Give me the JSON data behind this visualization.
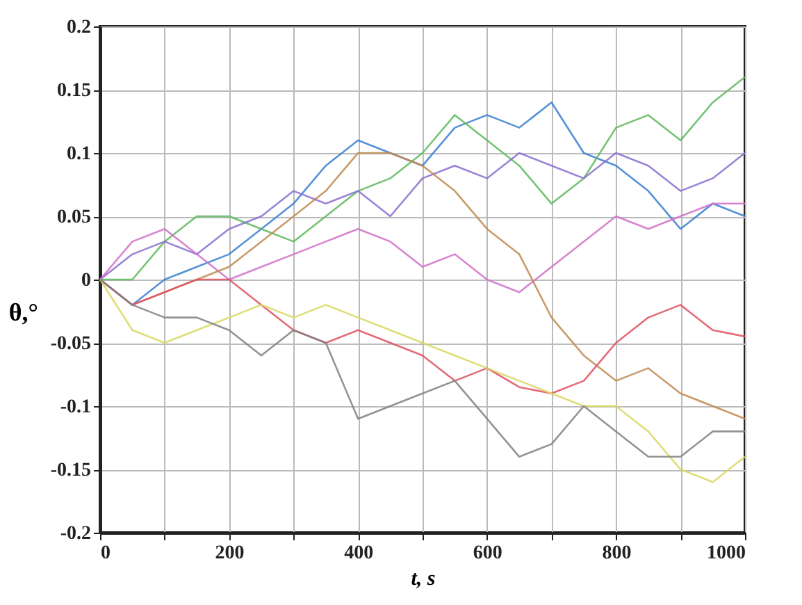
{
  "chart_data": {
    "type": "line",
    "xlabel": "t, s",
    "ylabel": "θ,°",
    "x": [
      0,
      50,
      100,
      150,
      200,
      250,
      300,
      350,
      400,
      450,
      500,
      550,
      600,
      650,
      700,
      750,
      800,
      850,
      900,
      950,
      1000
    ],
    "series": [
      {
        "color": "#3a7fd0",
        "values": [
          0,
          -0.02,
          0.0,
          0.01,
          0.02,
          0.04,
          0.06,
          0.09,
          0.11,
          0.1,
          0.09,
          0.12,
          0.13,
          0.12,
          0.14,
          0.1,
          0.09,
          0.07,
          0.04,
          0.06,
          0.05
        ]
      },
      {
        "color": "#5cb85c",
        "values": [
          0,
          0.0,
          0.03,
          0.05,
          0.05,
          0.04,
          0.03,
          0.05,
          0.07,
          0.08,
          0.1,
          0.13,
          0.11,
          0.09,
          0.06,
          0.08,
          0.12,
          0.13,
          0.11,
          0.14,
          0.16
        ]
      },
      {
        "color": "#8a6fd0",
        "values": [
          0,
          0.02,
          0.03,
          0.02,
          0.04,
          0.05,
          0.07,
          0.06,
          0.07,
          0.05,
          0.08,
          0.09,
          0.08,
          0.1,
          0.09,
          0.08,
          0.1,
          0.09,
          0.07,
          0.08,
          0.1
        ]
      },
      {
        "color": "#d070c8",
        "values": [
          0,
          0.03,
          0.04,
          0.02,
          0.0,
          0.01,
          0.02,
          0.03,
          0.04,
          0.03,
          0.01,
          0.02,
          0.0,
          -0.01,
          0.01,
          0.03,
          0.05,
          0.04,
          0.05,
          0.06,
          0.06
        ]
      },
      {
        "color": "#c08a50",
        "values": [
          0,
          -0.02,
          -0.01,
          0.0,
          0.01,
          0.03,
          0.05,
          0.07,
          0.1,
          0.1,
          0.09,
          0.07,
          0.04,
          0.02,
          -0.03,
          -0.06,
          -0.08,
          -0.07,
          -0.09,
          -0.1,
          -0.11
        ]
      },
      {
        "color": "#e05060",
        "values": [
          0,
          -0.02,
          -0.01,
          0.0,
          0.0,
          -0.02,
          -0.04,
          -0.05,
          -0.04,
          -0.05,
          -0.06,
          -0.08,
          -0.07,
          -0.085,
          -0.09,
          -0.08,
          -0.05,
          -0.03,
          -0.02,
          -0.04,
          -0.045
        ]
      },
      {
        "color": "#d8d860",
        "values": [
          0,
          -0.04,
          -0.05,
          -0.04,
          -0.03,
          -0.02,
          -0.03,
          -0.02,
          -0.03,
          -0.04,
          -0.05,
          -0.06,
          -0.07,
          -0.08,
          -0.09,
          -0.1,
          -0.1,
          -0.12,
          -0.15,
          -0.16,
          -0.14
        ]
      },
      {
        "color": "#808080",
        "values": [
          0,
          -0.02,
          -0.03,
          -0.03,
          -0.04,
          -0.06,
          -0.04,
          -0.05,
          -0.11,
          -0.1,
          -0.09,
          -0.08,
          -0.11,
          -0.14,
          -0.13,
          -0.1,
          -0.12,
          -0.14,
          -0.14,
          -0.12,
          -0.12
        ]
      }
    ],
    "xlim": [
      0,
      1000
    ],
    "xticks": [
      0,
      {
        "value": 100,
        "label": null
      },
      200,
      {
        "value": 300,
        "label": null
      },
      400,
      {
        "value": 500,
        "label": null
      },
      600,
      {
        "value": 700,
        "label": null
      },
      800,
      {
        "value": 900,
        "label": null
      },
      1000
    ],
    "ylim": [
      -0.2,
      0.2
    ],
    "yticks": [
      -0.2,
      -0.15,
      -0.1,
      -0.05,
      0,
      0.05,
      0.1,
      0.15,
      0.2
    ],
    "grid": true,
    "legend": false,
    "marker": "none",
    "line_style": "solid"
  }
}
